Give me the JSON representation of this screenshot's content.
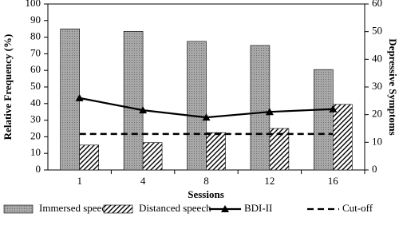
{
  "chart_data": {
    "type": "bar",
    "xlabel": "Sessions",
    "ylabel": "Relative Frequency (%)",
    "y2label": "Depressive Symptoms",
    "categories": [
      "1",
      "4",
      "8",
      "12",
      "16"
    ],
    "series": [
      {
        "name": "Immersed speech",
        "type": "bar",
        "color": "#a8a8a8",
        "pattern": "dotted",
        "values": [
          85,
          83.5,
          77.5,
          75,
          60.5
        ]
      },
      {
        "name": "Distanced speech",
        "type": "bar",
        "color": "#000000",
        "pattern": "diagonal",
        "values": [
          15,
          16.5,
          22.5,
          25,
          39.5
        ]
      },
      {
        "name": "BDI-II",
        "type": "line",
        "axis": "y2",
        "color": "#000000",
        "marker": "triangle",
        "values": [
          26,
          21.6,
          19,
          21,
          22
        ]
      },
      {
        "name": "Cut-off",
        "type": "line",
        "axis": "y2",
        "color": "#000000",
        "dashed": true,
        "values": [
          13,
          13,
          13,
          13,
          13
        ]
      }
    ],
    "ylim": [
      0,
      100
    ],
    "yticks": [
      0,
      10,
      20,
      30,
      40,
      50,
      60,
      70,
      80,
      90,
      100
    ],
    "y2lim": [
      0,
      60
    ],
    "y2ticks": [
      0,
      10,
      20,
      30,
      40,
      50,
      60
    ],
    "grid": false,
    "legend": "bottom"
  }
}
